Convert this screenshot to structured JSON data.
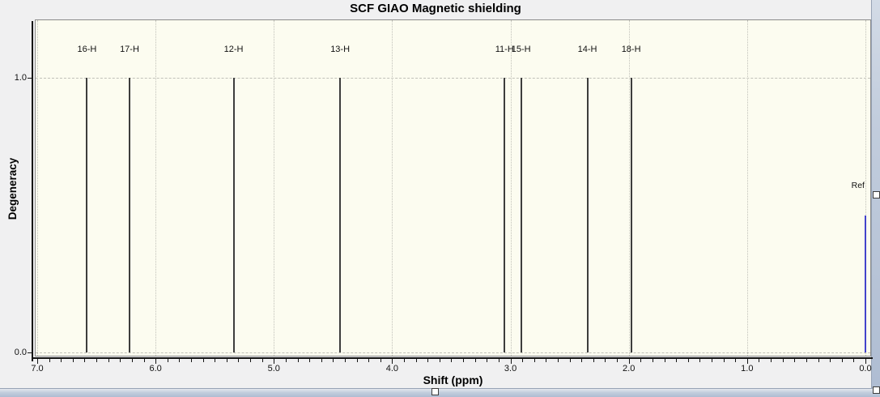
{
  "chart": {
    "title": "SCF GIAO Magnetic shielding",
    "xlabel": "Shift (ppm)",
    "ylabel": "Degeneracy"
  },
  "chart_data": {
    "type": "bar",
    "style": "stick-spectrum",
    "title": "SCF GIAO Magnetic shielding",
    "xlabel": "Shift (ppm)",
    "ylabel": "Degeneracy",
    "x_axis": {
      "min": 0.0,
      "max": 7.0,
      "reversed": true,
      "major_tick_step": 1.0,
      "minor_tick_step": 0.1,
      "tick_labels": [
        "7.0",
        "6.0",
        "5.0",
        "4.0",
        "3.0",
        "2.0",
        "1.0",
        "0.0"
      ]
    },
    "y_axis": {
      "min": 0.0,
      "max": 1.21,
      "tick_values": [
        0.0,
        1.0
      ],
      "tick_labels": [
        "0.0",
        "1.0"
      ]
    },
    "grid": "dotted",
    "peaks": [
      {
        "label": "16-H",
        "shift_ppm": 6.58,
        "degeneracy": 1.0
      },
      {
        "label": "17-H",
        "shift_ppm": 6.22,
        "degeneracy": 1.0
      },
      {
        "label": "12-H",
        "shift_ppm": 5.34,
        "degeneracy": 1.0
      },
      {
        "label": "13-H",
        "shift_ppm": 4.44,
        "degeneracy": 1.0
      },
      {
        "label": "11-H",
        "shift_ppm": 3.05,
        "degeneracy": 1.0
      },
      {
        "label": "15-H",
        "shift_ppm": 2.91,
        "degeneracy": 1.0
      },
      {
        "label": "14-H",
        "shift_ppm": 2.35,
        "degeneracy": 1.0
      },
      {
        "label": "18-H",
        "shift_ppm": 1.98,
        "degeneracy": 1.0
      }
    ],
    "reference_peak": {
      "label": "Ref",
      "shift_ppm": 0.0,
      "height": 0.5
    }
  },
  "colors": {
    "plot_background": "#fcfcf0",
    "panel_background": "#f0f0f1",
    "grid": "#c1c1b9",
    "peak": "#3d3d3d",
    "reference_peak": "#4444cc",
    "axis": "#141414",
    "window_edge": "#aebcd2"
  },
  "selection": {
    "handles": [
      "right-middle",
      "bottom-center",
      "bottom-right"
    ]
  }
}
